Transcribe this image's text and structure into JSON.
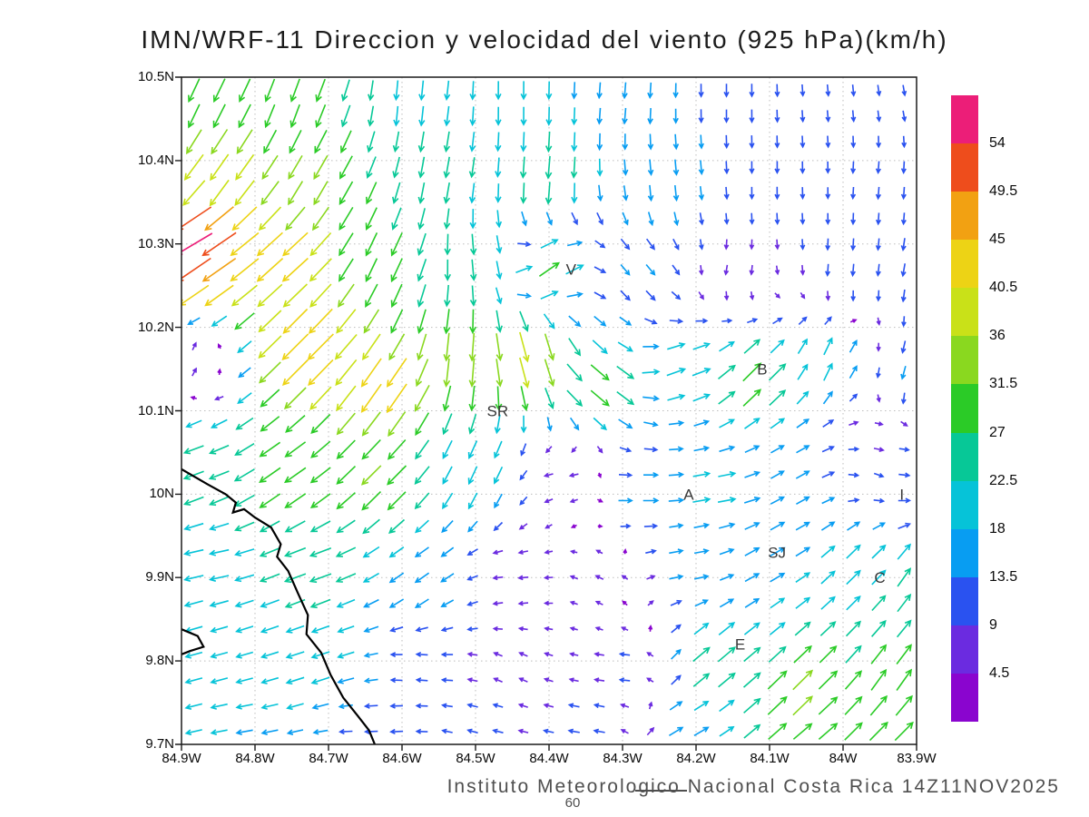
{
  "header": {
    "title": "IMN/WRF-11 Direccion y velocidad del viento (925 hPa)(km/h)"
  },
  "footer": {
    "caption": "Instituto Meteorologico Nacional Costa Rica  14Z11NOV2025",
    "forecast_hour": "60"
  },
  "chart_data": {
    "type": "quiver",
    "title": "IMN/WRF-11 Direccion y velocidad del viento (925 hPa)(km/h)",
    "model": "IMN/WRF-11",
    "variable": "Direccion y velocidad del viento",
    "level": "925 hPa",
    "units": "km/h",
    "valid_time": "14Z11NOV2025",
    "forecast_hour": "60",
    "grid": true,
    "lon_west": 84.9,
    "lon_east": 83.9,
    "lat_south": 9.7,
    "lat_north": 10.5,
    "x_axis": {
      "name": "longitude",
      "values": [
        84.9,
        84.8,
        84.7,
        84.6,
        84.5,
        84.4,
        84.3,
        84.2,
        84.1,
        84.0,
        83.9
      ],
      "labels": [
        "84.9W",
        "84.8W",
        "84.7W",
        "84.6W",
        "84.5W",
        "84.4W",
        "84.3W",
        "84.2W",
        "84.1W",
        "84W",
        "83.9W"
      ]
    },
    "y_axis": {
      "name": "latitude",
      "values": [
        10.5,
        10.4,
        10.3,
        10.2,
        10.1,
        10.0,
        9.9,
        9.8,
        9.7
      ],
      "labels": [
        "10.5N",
        "10.4N",
        "10.3N",
        "10.2N",
        "10.1N",
        "10N",
        "9.9N",
        "9.8N",
        "9.7N"
      ]
    },
    "colorbar": {
      "position": "right",
      "levels": [
        4.5,
        9,
        13.5,
        18,
        22.5,
        27,
        31.5,
        36,
        40.5,
        45,
        49.5,
        54
      ],
      "colors": [
        "#8a05cf",
        "#6b2be0",
        "#2a52f0",
        "#089df2",
        "#06c3d8",
        "#07c897",
        "#2bcb27",
        "#8ad81f",
        "#c9e118",
        "#edd315",
        "#f2a112",
        "#ee4d1c",
        "#ec1e78"
      ]
    },
    "arrow_grid": {
      "nx": 29,
      "ny": 26
    },
    "wind_samples_format": "[lon_W, lat_N, direction_toward_deg, speed_kmh]",
    "wind_samples": [
      [
        84.88,
        10.47,
        205,
        30
      ],
      [
        84.75,
        10.47,
        200,
        28
      ],
      [
        84.6,
        10.47,
        185,
        22
      ],
      [
        84.45,
        10.47,
        180,
        20
      ],
      [
        84.3,
        10.47,
        185,
        17
      ],
      [
        84.15,
        10.47,
        180,
        13
      ],
      [
        84.0,
        10.47,
        175,
        11
      ],
      [
        83.92,
        10.47,
        170,
        10
      ],
      [
        84.85,
        10.38,
        215,
        38
      ],
      [
        84.72,
        10.38,
        210,
        32
      ],
      [
        84.55,
        10.38,
        190,
        24
      ],
      [
        84.4,
        10.38,
        185,
        26
      ],
      [
        84.25,
        10.38,
        175,
        17
      ],
      [
        84.1,
        10.38,
        180,
        12
      ],
      [
        83.95,
        10.38,
        185,
        12
      ],
      [
        84.89,
        10.3,
        240,
        57
      ],
      [
        84.87,
        10.28,
        235,
        50
      ],
      [
        84.76,
        10.28,
        228,
        42
      ],
      [
        84.62,
        10.28,
        205,
        30
      ],
      [
        84.5,
        10.28,
        175,
        24
      ],
      [
        84.4,
        10.27,
        55,
        28
      ],
      [
        84.28,
        10.27,
        140,
        14
      ],
      [
        84.15,
        10.27,
        190,
        9
      ],
      [
        84.0,
        10.27,
        185,
        12
      ],
      [
        83.91,
        10.27,
        190,
        13
      ],
      [
        84.88,
        10.16,
        30,
        8
      ],
      [
        84.73,
        10.17,
        225,
        45
      ],
      [
        84.62,
        10.13,
        215,
        43
      ],
      [
        84.52,
        10.16,
        185,
        34
      ],
      [
        84.43,
        10.16,
        165,
        38
      ],
      [
        84.33,
        10.13,
        130,
        28
      ],
      [
        84.22,
        10.15,
        70,
        22
      ],
      [
        84.12,
        10.14,
        45,
        30
      ],
      [
        84.02,
        10.16,
        25,
        22
      ],
      [
        83.92,
        10.15,
        195,
        14
      ],
      [
        84.88,
        10.03,
        250,
        24
      ],
      [
        84.76,
        10.02,
        235,
        30
      ],
      [
        84.63,
        10.02,
        225,
        32
      ],
      [
        84.5,
        10.03,
        205,
        22
      ],
      [
        84.38,
        10.02,
        260,
        8
      ],
      [
        84.27,
        10.0,
        90,
        16
      ],
      [
        84.17,
        10.0,
        80,
        20
      ],
      [
        84.07,
        10.02,
        60,
        16
      ],
      [
        83.95,
        10.02,
        110,
        9
      ],
      [
        83.9,
        10.0,
        90,
        12
      ],
      [
        84.86,
        9.92,
        258,
        22
      ],
      [
        84.72,
        9.91,
        250,
        26
      ],
      [
        84.58,
        9.9,
        235,
        18
      ],
      [
        84.45,
        9.9,
        265,
        9
      ],
      [
        84.33,
        9.9,
        295,
        7
      ],
      [
        84.21,
        9.92,
        80,
        15
      ],
      [
        84.1,
        9.93,
        60,
        18
      ],
      [
        83.98,
        9.91,
        45,
        22
      ],
      [
        83.9,
        9.9,
        35,
        26
      ],
      [
        84.86,
        9.79,
        255,
        19
      ],
      [
        84.72,
        9.79,
        252,
        21
      ],
      [
        84.58,
        9.79,
        275,
        11
      ],
      [
        84.45,
        9.79,
        295,
        8
      ],
      [
        84.3,
        9.79,
        275,
        10
      ],
      [
        84.17,
        9.8,
        50,
        26
      ],
      [
        84.06,
        9.76,
        45,
        33
      ],
      [
        83.93,
        9.77,
        35,
        30
      ],
      [
        84.82,
        9.72,
        260,
        18
      ],
      [
        84.65,
        9.72,
        268,
        13
      ],
      [
        84.5,
        9.72,
        285,
        10
      ],
      [
        84.35,
        9.72,
        280,
        11
      ],
      [
        84.2,
        9.72,
        60,
        18
      ],
      [
        84.05,
        9.72,
        50,
        28
      ],
      [
        83.93,
        9.72,
        45,
        30
      ]
    ],
    "stations": [
      {
        "label": "V",
        "lon": 84.37,
        "lat": 10.27
      },
      {
        "label": "B",
        "lon": 84.11,
        "lat": 10.15
      },
      {
        "label": "SR",
        "lon": 84.47,
        "lat": 10.1
      },
      {
        "label": "A",
        "lon": 84.21,
        "lat": 10.0
      },
      {
        "label": "I",
        "lon": 83.92,
        "lat": 10.0
      },
      {
        "label": "SJ",
        "lon": 84.09,
        "lat": 9.93
      },
      {
        "label": "C",
        "lon": 83.95,
        "lat": 9.9
      },
      {
        "label": "E",
        "lon": 84.14,
        "lat": 9.82
      }
    ],
    "coastline": [
      [
        [
          84.9,
          10.03
        ],
        [
          84.865,
          10.012
        ],
        [
          84.84,
          10.0
        ],
        [
          84.826,
          9.99
        ],
        [
          84.83,
          9.978
        ],
        [
          84.815,
          9.982
        ],
        [
          84.8,
          9.972
        ],
        [
          84.778,
          9.96
        ],
        [
          84.765,
          9.94
        ],
        [
          84.77,
          9.925
        ],
        [
          84.755,
          9.908
        ],
        [
          84.742,
          9.882
        ],
        [
          84.728,
          9.855
        ],
        [
          84.73,
          9.832
        ],
        [
          84.71,
          9.81
        ],
        [
          84.697,
          9.783
        ],
        [
          84.68,
          9.756
        ],
        [
          84.66,
          9.734
        ],
        [
          84.645,
          9.717
        ],
        [
          84.637,
          9.7
        ]
      ],
      [
        [
          84.9,
          9.838
        ],
        [
          84.878,
          9.83
        ],
        [
          84.87,
          9.817
        ],
        [
          84.888,
          9.812
        ],
        [
          84.9,
          9.808
        ]
      ]
    ]
  }
}
